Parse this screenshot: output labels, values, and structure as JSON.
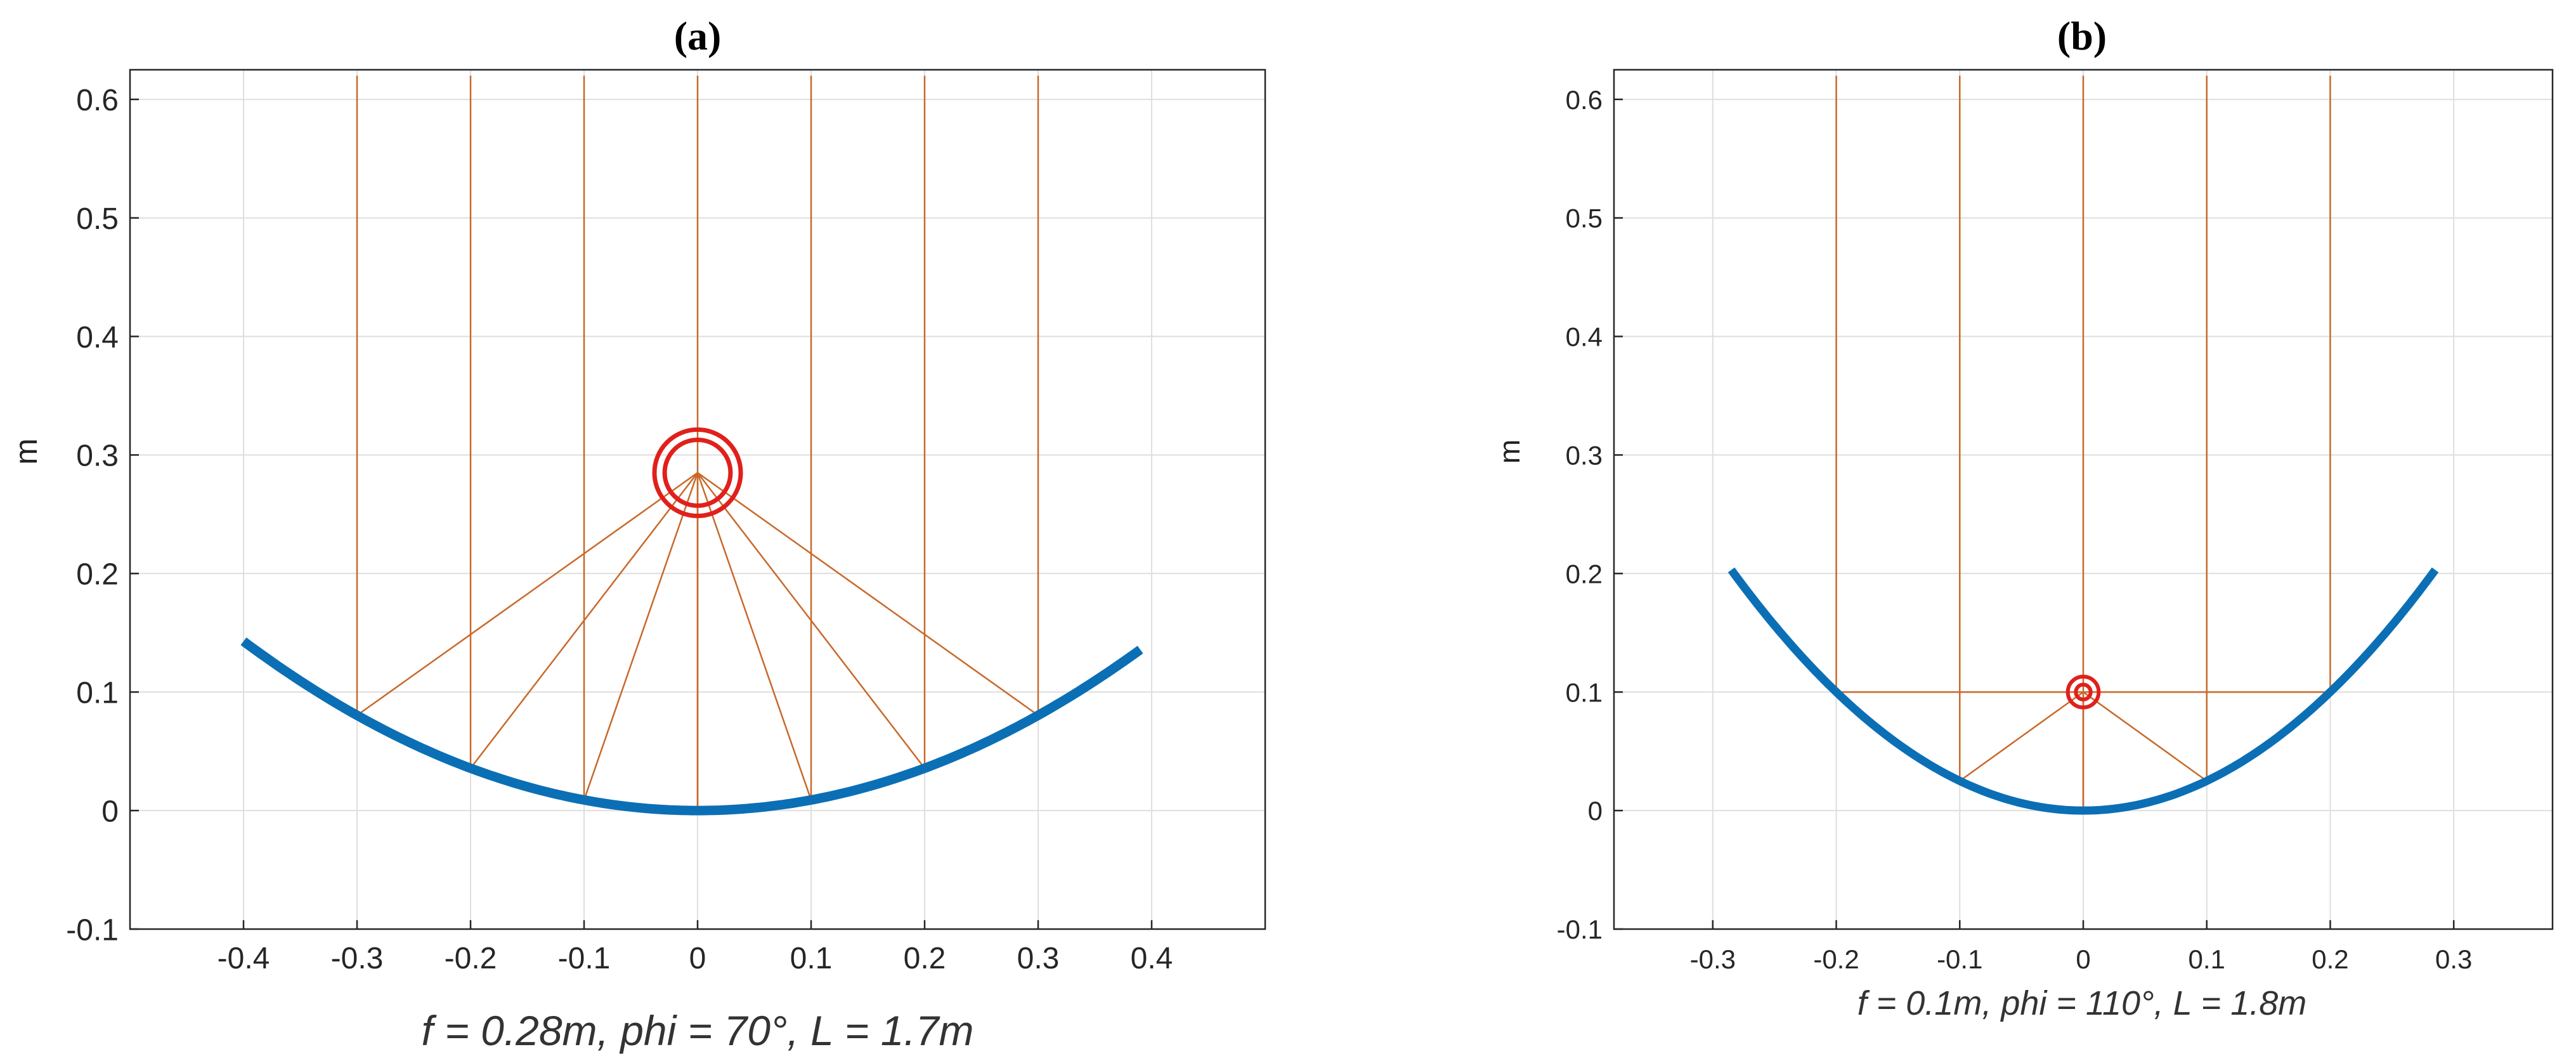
{
  "chart_data": [
    {
      "type": "line",
      "panel_label": "(a)",
      "subtitle": "f = 0.28m, phi = 70°, L = 1.7m",
      "ylabel": "m",
      "xlim": [
        -0.5,
        0.5
      ],
      "ylim": [
        -0.1,
        0.625
      ],
      "xticks": [
        -0.4,
        -0.3,
        -0.2,
        -0.1,
        0,
        0.1,
        0.2,
        0.3,
        0.4
      ],
      "xtick_labels": [
        "-0.4",
        "-0.3",
        "-0.2",
        "-0.1",
        "0",
        "0.1",
        "0.2",
        "0.3",
        "0.4"
      ],
      "yticks": [
        -0.1,
        0,
        0.1,
        0.2,
        0.3,
        0.4,
        0.5,
        0.6
      ],
      "ytick_labels": [
        "-0.1",
        "0",
        "0.1",
        "0.2",
        "0.3",
        "0.4",
        "0.5",
        "0.6"
      ],
      "grid": true,
      "focal_length": 0.28,
      "reflector_x_range": [
        -0.4,
        0.39
      ],
      "ray_x": [
        -0.3,
        -0.2,
        -0.1,
        0,
        0.1,
        0.2,
        0.3
      ],
      "ray_top_y": 0.62,
      "focus": [
        0,
        0.285
      ],
      "receiver_radii": [
        0.038,
        0.029
      ],
      "colors": {
        "reflector": "#0b6fb5",
        "rays": "#c8692a",
        "receiver": "#e0201c",
        "grid": "#dedede"
      }
    },
    {
      "type": "line",
      "panel_label": "(b)",
      "subtitle": "f = 0.1m, phi = 110°, L = 1.8m",
      "ylabel": "m",
      "xlim": [
        -0.38,
        0.38
      ],
      "ylim": [
        -0.1,
        0.625
      ],
      "xticks": [
        -0.3,
        -0.2,
        -0.1,
        0,
        0.1,
        0.2,
        0.3
      ],
      "xtick_labels": [
        "-0.3",
        "-0.2",
        "-0.1",
        "0",
        "0.1",
        "0.2",
        "0.3"
      ],
      "yticks": [
        -0.1,
        0,
        0.1,
        0.2,
        0.3,
        0.4,
        0.5,
        0.6
      ],
      "ytick_labels": [
        "-0.1",
        "0",
        "0.1",
        "0.2",
        "0.3",
        "0.4",
        "0.5",
        "0.6"
      ],
      "grid": true,
      "focal_length": 0.1,
      "reflector_x_range": [
        -0.285,
        0.285
      ],
      "ray_x": [
        -0.2,
        -0.1,
        0,
        0.1,
        0.2
      ],
      "ray_top_y": 0.62,
      "focus": [
        0,
        0.1
      ],
      "receiver_radii": [
        0.0125,
        0.006
      ],
      "colors": {
        "reflector": "#0b6fb5",
        "rays": "#c8692a",
        "receiver": "#e0201c",
        "grid": "#dedede"
      }
    }
  ]
}
